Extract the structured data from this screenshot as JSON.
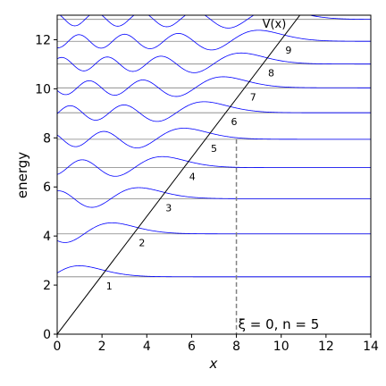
{
  "chart_data": {
    "type": "line",
    "xlabel": "x",
    "ylabel": "energy",
    "xlim": [
      0,
      14
    ],
    "ylim": [
      0,
      13
    ],
    "xticks": [
      0,
      2,
      4,
      6,
      8,
      10,
      12,
      14
    ],
    "yticks": [
      0,
      2,
      4,
      6,
      8,
      10,
      12
    ],
    "grid": false,
    "potential": {
      "name": "V(x)",
      "slope": 1.2,
      "color": "#000000"
    },
    "energy_levels": [
      {
        "n": 1,
        "energy": 2.338
      },
      {
        "n": 2,
        "energy": 4.088
      },
      {
        "n": 3,
        "energy": 5.521
      },
      {
        "n": 4,
        "energy": 6.787
      },
      {
        "n": 5,
        "energy": 7.944
      },
      {
        "n": 6,
        "energy": 9.023
      },
      {
        "n": 7,
        "energy": 10.04
      },
      {
        "n": 8,
        "energy": 11.009
      },
      {
        "n": 9,
        "energy": 11.936
      },
      {
        "n": 10,
        "energy": 12.829
      }
    ],
    "level_labels": [
      "1",
      "2",
      "3",
      "4",
      "5",
      "6",
      "7",
      "8",
      "9"
    ],
    "wavefunction_amplitude": 0.45,
    "wavefunction_color": "#0000ff",
    "level_line_color": "#808080",
    "marker": {
      "x": 8,
      "label": "ξ = 0, n = 5",
      "color": "#808080"
    }
  }
}
